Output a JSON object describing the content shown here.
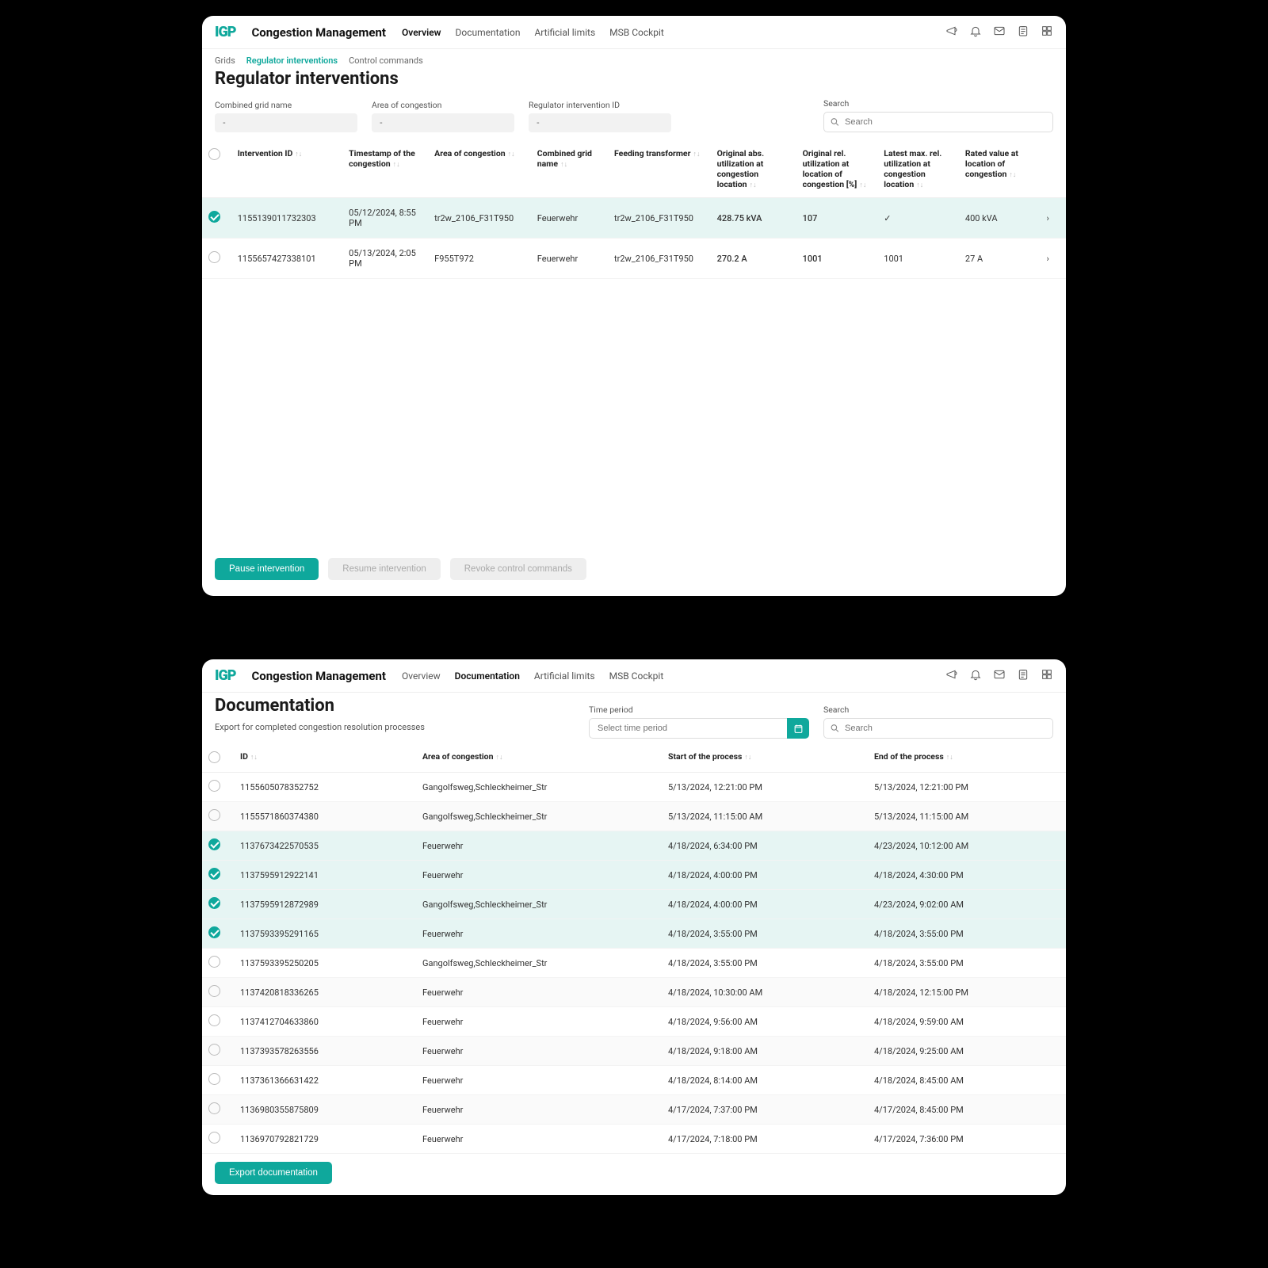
{
  "brand": "Congestion Management",
  "nav": {
    "overview": "Overview",
    "documentation": "Documentation",
    "artificial": "Artificial limits",
    "msb": "MSB Cockpit"
  },
  "w1": {
    "crumbs": {
      "grids": "Grids",
      "reg": "Regulator interventions",
      "cmd": "Control commands"
    },
    "title": "Regulator interventions",
    "filters": {
      "combined_label": "Combined grid name",
      "combined_val": "-",
      "area_label": "Area of congestion",
      "area_val": "-",
      "regid_label": "Regulator intervention ID",
      "regid_val": "-",
      "search_label": "Search",
      "search_ph": "Search"
    },
    "cols": {
      "intervention": "Intervention ID",
      "timestamp": "Timestamp of the congestion",
      "area": "Area of congestion",
      "combined": "Combined grid name",
      "feeding": "Feeding transformer",
      "orig_abs": "Original abs. utilization at congestion location",
      "orig_rel": "Original rel. utilization at location of congestion [%]",
      "latest_rel": "Latest max. rel. utilization at congestion location",
      "rated": "Rated value at location of congestion"
    },
    "rows": [
      {
        "checked": true,
        "id": "1155139011732303",
        "ts": "05/12/2024, 8:55 PM",
        "area": "tr2w_2106_F31T950",
        "combined": "Feuerwehr",
        "feeding": "tr2w_2106_F31T950",
        "abs": "428.75 kVA",
        "rel": "107",
        "latest": "✓",
        "rated": "400 kVA"
      },
      {
        "checked": false,
        "id": "1155657427338101",
        "ts": "05/13/2024, 2:05 PM",
        "area": "F955T972",
        "combined": "Feuerwehr",
        "feeding": "tr2w_2106_F31T950",
        "abs": "270.2 A",
        "rel": "1001",
        "latest": "1001",
        "rated": "27 A"
      }
    ],
    "btns": {
      "pause": "Pause intervention",
      "resume": "Resume intervention",
      "revoke": "Revoke control commands"
    }
  },
  "w2": {
    "title": "Documentation",
    "subtitle": "Export for completed congestion resolution processes",
    "time_label": "Time period",
    "time_ph": "Select time period",
    "search_label": "Search",
    "search_ph": "Search",
    "cols": {
      "id": "ID",
      "area": "Area of congestion",
      "start": "Start of the process",
      "end": "End of the process"
    },
    "rows": [
      {
        "c": false,
        "id": "1155605078352752",
        "area": "Gangolfsweg,Schleckheimer_Str",
        "start": "5/13/2024, 12:21:00 PM",
        "end": "5/13/2024, 12:21:00 PM"
      },
      {
        "c": false,
        "id": "1155571860374380",
        "area": "Gangolfsweg,Schleckheimer_Str",
        "start": "5/13/2024, 11:15:00 AM",
        "end": "5/13/2024, 11:15:00 AM"
      },
      {
        "c": true,
        "id": "1137673422570535",
        "area": "Feuerwehr",
        "start": "4/18/2024, 6:34:00 PM",
        "end": "4/23/2024, 10:12:00 AM"
      },
      {
        "c": true,
        "id": "1137595912922141",
        "area": "Feuerwehr",
        "start": "4/18/2024, 4:00:00 PM",
        "end": "4/18/2024, 4:30:00 PM"
      },
      {
        "c": true,
        "id": "1137595912872989",
        "area": "Gangolfsweg,Schleckheimer_Str",
        "start": "4/18/2024, 4:00:00 PM",
        "end": "4/23/2024, 9:02:00 AM"
      },
      {
        "c": true,
        "id": "1137593395291165",
        "area": "Feuerwehr",
        "start": "4/18/2024, 3:55:00 PM",
        "end": "4/18/2024, 3:55:00 PM"
      },
      {
        "c": false,
        "id": "1137593395250205",
        "area": "Gangolfsweg,Schleckheimer_Str",
        "start": "4/18/2024, 3:55:00 PM",
        "end": "4/18/2024, 3:55:00 PM"
      },
      {
        "c": false,
        "id": "1137420818336265",
        "area": "Feuerwehr",
        "start": "4/18/2024, 10:30:00 AM",
        "end": "4/18/2024, 12:15:00 PM"
      },
      {
        "c": false,
        "id": "1137412704633860",
        "area": "Feuerwehr",
        "start": "4/18/2024, 9:56:00 AM",
        "end": "4/18/2024, 9:59:00 AM"
      },
      {
        "c": false,
        "id": "1137393578263556",
        "area": "Feuerwehr",
        "start": "4/18/2024, 9:18:00 AM",
        "end": "4/18/2024, 9:25:00 AM"
      },
      {
        "c": false,
        "id": "1137361366631422",
        "area": "Feuerwehr",
        "start": "4/18/2024, 8:14:00 AM",
        "end": "4/18/2024, 8:45:00 AM"
      },
      {
        "c": false,
        "id": "1136980355875809",
        "area": "Feuerwehr",
        "start": "4/17/2024, 7:37:00 PM",
        "end": "4/17/2024, 8:45:00 PM"
      },
      {
        "c": false,
        "id": "1136970792821729",
        "area": "Feuerwehr",
        "start": "4/17/2024, 7:18:00 PM",
        "end": "4/17/2024, 7:36:00 PM"
      }
    ],
    "export_btn": "Export documentation"
  }
}
